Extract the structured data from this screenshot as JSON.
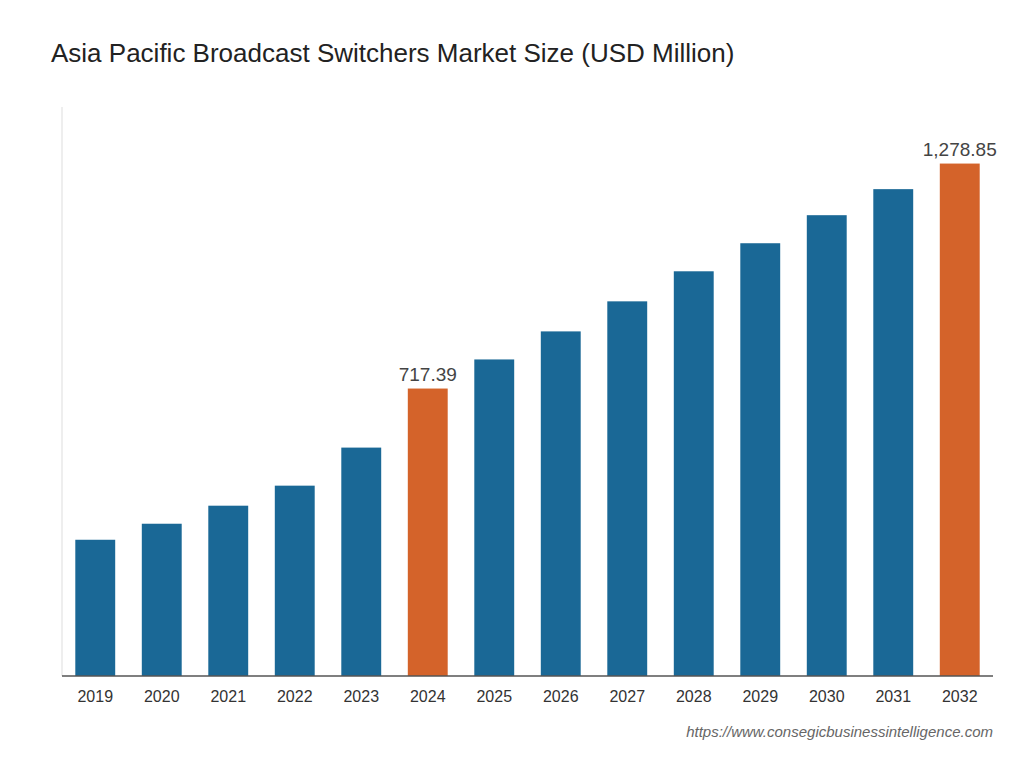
{
  "chart_data": {
    "type": "bar",
    "title": "Asia Pacific Broadcast Switchers Market Size (USD Million)",
    "categories": [
      "2019",
      "2020",
      "2021",
      "2022",
      "2023",
      "2024",
      "2025",
      "2026",
      "2027",
      "2028",
      "2029",
      "2030",
      "2031",
      "2032"
    ],
    "values": [
      340,
      380,
      425,
      475,
      570,
      717.39,
      790,
      860,
      935,
      1010,
      1080,
      1150,
      1215,
      1278.85
    ],
    "value_labels": [
      null,
      null,
      null,
      null,
      null,
      "717.39",
      null,
      null,
      null,
      null,
      null,
      null,
      null,
      "1,278.85"
    ],
    "colors": [
      "#1a6896",
      "#1a6896",
      "#1a6896",
      "#1a6896",
      "#1a6896",
      "#d4632a",
      "#1a6896",
      "#1a6896",
      "#1a6896",
      "#1a6896",
      "#1a6896",
      "#1a6896",
      "#1a6896",
      "#d4632a"
    ],
    "ylim": [
      0,
      1420
    ],
    "grid": false,
    "tick_labels": "x",
    "annotations": [
      "https://www.consegicbusinessintelligence.com"
    ]
  }
}
